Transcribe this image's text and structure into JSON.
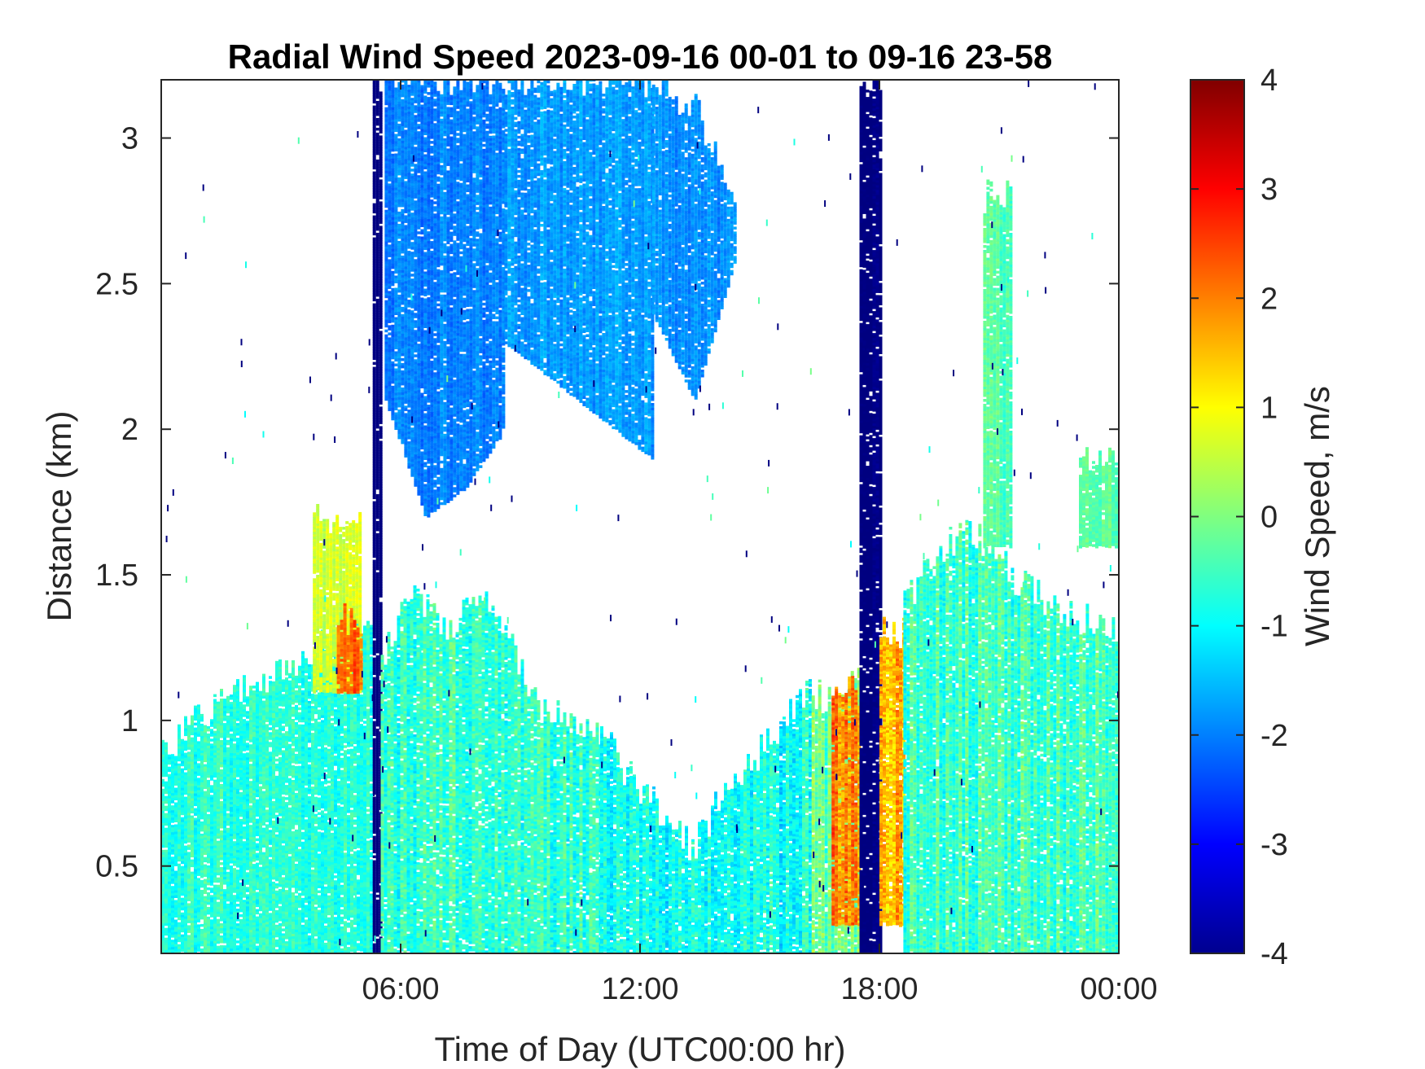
{
  "chart_data": {
    "type": "heatmap",
    "title": "Radial Wind Speed 2023-09-16 00-01 to 09-16 23-58",
    "xlabel": "Time of Day (UTC00:00 hr)",
    "ylabel": "Distance (km)",
    "x_unit": "hours UTC",
    "xlim": [
      0,
      24
    ],
    "ylim": [
      0.2,
      3.2
    ],
    "x_ticks": [
      {
        "value": 6,
        "label": "06:00"
      },
      {
        "value": 12,
        "label": "12:00"
      },
      {
        "value": 18,
        "label": "18:00"
      },
      {
        "value": 24,
        "label": "00:00"
      }
    ],
    "y_ticks": [
      {
        "value": 0.5,
        "label": "0.5"
      },
      {
        "value": 1,
        "label": "1"
      },
      {
        "value": 1.5,
        "label": "1.5"
      },
      {
        "value": 2,
        "label": "2"
      },
      {
        "value": 2.5,
        "label": "2.5"
      },
      {
        "value": 3,
        "label": "3"
      }
    ],
    "colorbar": {
      "label": "Wind Speed, m/s",
      "colormap": "jet",
      "clim": [
        -4,
        4
      ],
      "ticks": [
        {
          "value": 4,
          "label": "4"
        },
        {
          "value": 3,
          "label": "3"
        },
        {
          "value": 2,
          "label": "2"
        },
        {
          "value": 1,
          "label": "1"
        },
        {
          "value": 0,
          "label": "0"
        },
        {
          "value": -1,
          "label": "-1"
        },
        {
          "value": -2,
          "label": "-2"
        },
        {
          "value": -3,
          "label": "-3"
        },
        {
          "value": -4,
          "label": "-4"
        }
      ]
    },
    "grid": false,
    "field_regions": [
      {
        "x": [
          0,
          5.3
        ],
        "y_top": [
          0.9,
          1.0,
          1.1,
          1.15,
          1.2,
          1.3,
          1.35
        ],
        "mean": -0.7,
        "spread": 0.6
      },
      {
        "x": [
          3.8,
          5.0
        ],
        "y": [
          1.1,
          1.7
        ],
        "mean": 0.6,
        "spread": 0.5
      },
      {
        "x": [
          4.4,
          5.0
        ],
        "y": [
          1.1,
          1.35
        ],
        "mean": 2.2,
        "spread": 0.6
      },
      {
        "x": [
          5.3,
          5.5
        ],
        "y": [
          0.2,
          3.2
        ],
        "mean": -4.0,
        "spread": 0.1
      },
      {
        "x": [
          5.5,
          11.0
        ],
        "y_top": [
          1.2,
          1.45,
          1.3,
          1.45,
          1.3,
          1.05,
          1.0,
          0.95
        ],
        "mean": -0.6,
        "spread": 0.8
      },
      {
        "x": [
          5.6,
          8.6
        ],
        "y_top": [
          3.2,
          3.2,
          3.2,
          3.2
        ],
        "y_bottom": [
          2.1,
          1.7,
          1.8,
          2.0
        ],
        "mean": -2.0,
        "spread": 0.4
      },
      {
        "x": [
          8.6,
          12.3
        ],
        "y_top": [
          3.2,
          3.2,
          3.2
        ],
        "y_bottom": [
          2.3,
          2.1,
          1.9
        ],
        "mean": -1.8,
        "spread": 0.4
      },
      {
        "x": [
          12.3,
          14.4
        ],
        "y_top": [
          3.2,
          3.1,
          2.8
        ],
        "y_bottom": [
          2.4,
          2.1,
          2.6
        ],
        "mean": -1.9,
        "spread": 0.4
      },
      {
        "x": [
          11.0,
          16.3
        ],
        "y_top": [
          0.95,
          0.8,
          0.7,
          0.55,
          0.75,
          0.85,
          1.0,
          1.1
        ],
        "mean": -0.9,
        "spread": 0.8
      },
      {
        "x": [
          16.3,
          17.5
        ],
        "y_top": [
          1.1,
          1.05,
          1.15
        ],
        "mean": -0.2,
        "spread": 0.9
      },
      {
        "x": [
          16.8,
          17.5
        ],
        "y": [
          0.3,
          1.1
        ],
        "mean": 2.0,
        "spread": 1.0
      },
      {
        "x": [
          17.5,
          18.0
        ],
        "y": [
          0.2,
          3.2
        ],
        "mean": -4.0,
        "spread": 0.2
      },
      {
        "x": [
          18.0,
          18.6
        ],
        "y": [
          0.3,
          1.3
        ],
        "mean": 1.8,
        "spread": 1.0
      },
      {
        "x": [
          18.6,
          24.0
        ],
        "y_top": [
          1.4,
          1.6,
          1.65,
          1.5,
          1.4,
          1.35,
          1.3
        ],
        "mean": -0.5,
        "spread": 0.8
      },
      {
        "x": [
          20.6,
          21.3
        ],
        "y": [
          1.6,
          2.8
        ],
        "mean": -0.4,
        "spread": 0.5
      },
      {
        "x": [
          23.0,
          24.0
        ],
        "y": [
          1.6,
          1.9
        ],
        "mean": -0.3,
        "spread": 0.4
      }
    ]
  }
}
